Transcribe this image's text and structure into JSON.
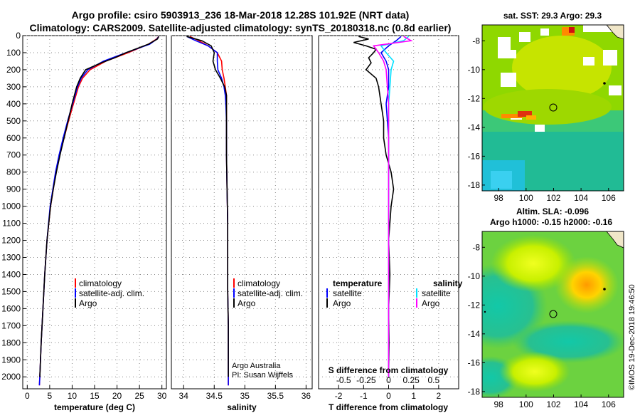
{
  "title_line1": "Argo profile: csiro 5903913_236 18-Mar-2018 12.28S 101.92E (NRT data)",
  "title_line2": "Climatology: CARS2009. Satellite-adjusted climatology: synTS_20180318.nc (0.8d earlier)",
  "credit": "©IMOS 19-Dec-2018 19:46:50",
  "sst_title": "sat. SST: 29.3 Argo: 29.3",
  "sla_title1": "Altim. SLA: -0.096",
  "sla_title2": "Argo h1000: -0.15 h2000: -0.16",
  "attribution1": "Argo Australia",
  "attribution2": "PI: Susan Wijffels",
  "chart_data": [
    {
      "type": "line",
      "xlabel": "temperature (deg C)",
      "xlim": [
        -1,
        31
      ],
      "ylim": [
        2070,
        0
      ],
      "xticks": [
        "0",
        "5",
        "10",
        "15",
        "20",
        "25",
        "30"
      ],
      "xtick_values": [
        0,
        5,
        10,
        15,
        20,
        25,
        30
      ],
      "yticks": [
        "0",
        "100",
        "200",
        "300",
        "400",
        "500",
        "600",
        "700",
        "800",
        "900",
        "1000",
        "1100",
        "1200",
        "1300",
        "1400",
        "1500",
        "1600",
        "1700",
        "1800",
        "1900",
        "2000"
      ],
      "ytick_values": [
        0,
        100,
        200,
        300,
        400,
        500,
        600,
        700,
        800,
        900,
        1000,
        1100,
        1200,
        1300,
        1400,
        1500,
        1600,
        1700,
        1800,
        1900,
        2000
      ],
      "legend": [
        "climatology",
        "satellite-adj. clim.",
        "Argo"
      ],
      "series": [
        {
          "name": "climatology",
          "color": "#ff0000",
          "depth": [
            5,
            20,
            50,
            100,
            150,
            200,
            250,
            300,
            400,
            500,
            600,
            700,
            800,
            900,
            1000,
            1200,
            1400,
            1600,
            1800,
            2000,
            2050
          ],
          "values": [
            29.3,
            28.8,
            27.0,
            22.5,
            17.5,
            14.0,
            12.3,
            11.4,
            10.3,
            9.2,
            8.2,
            7.2,
            6.4,
            5.8,
            5.2,
            4.4,
            3.9,
            3.5,
            3.1,
            2.8,
            2.7
          ]
        },
        {
          "name": "satellite-adj. clim.",
          "color": "#0000ff",
          "depth": [
            5,
            20,
            50,
            100,
            150,
            200,
            250,
            300,
            400,
            500,
            600,
            700,
            800,
            900,
            1000,
            1200,
            1400,
            1600,
            1800,
            2000,
            2050
          ],
          "values": [
            29.3,
            28.9,
            27.3,
            22.0,
            17.0,
            13.5,
            12.0,
            11.2,
            10.1,
            9.0,
            8.0,
            7.1,
            6.3,
            5.7,
            5.1,
            4.4,
            3.9,
            3.5,
            3.1,
            2.8,
            2.7
          ]
        },
        {
          "name": "Argo",
          "color": "#000000",
          "depth": [
            5,
            20,
            50,
            100,
            130,
            160,
            200,
            250,
            300,
            400,
            500,
            600,
            700,
            800,
            900,
            1000,
            1200,
            1400,
            1600,
            1800,
            2000
          ],
          "values": [
            29.3,
            29.0,
            27.0,
            22.0,
            19.5,
            16.5,
            13.0,
            11.8,
            11.0,
            10.0,
            9.1,
            8.2,
            7.3,
            6.5,
            5.8,
            5.2,
            4.4,
            3.9,
            3.5,
            3.1,
            2.8
          ]
        }
      ]
    },
    {
      "type": "line",
      "xlabel": "salinity",
      "xlim": [
        33.8,
        36.1
      ],
      "ylim": [
        2070,
        0
      ],
      "xticks": [
        "34",
        "34.5",
        "35",
        "35.5",
        "36"
      ],
      "xtick_values": [
        34,
        34.5,
        35,
        35.5,
        36
      ],
      "legend": [
        "climatology",
        "satellite-adj. clim.",
        "Argo"
      ],
      "series": [
        {
          "name": "climatology",
          "color": "#ff0000",
          "depth": [
            5,
            30,
            60,
            100,
            150,
            200,
            250,
            300,
            350,
            400,
            500,
            700,
            900,
            1100,
            1300,
            1500,
            1700,
            1900,
            2050
          ],
          "values": [
            34.1,
            34.25,
            34.4,
            34.55,
            34.62,
            34.63,
            34.66,
            34.68,
            34.7,
            34.7,
            34.7,
            34.7,
            34.71,
            34.72,
            34.72,
            34.72,
            34.73,
            34.73,
            34.73
          ]
        },
        {
          "name": "satellite-adj. clim.",
          "color": "#0000ff",
          "depth": [
            5,
            30,
            60,
            100,
            150,
            200,
            250,
            300,
            350,
            400,
            500,
            700,
            900,
            1100,
            1300,
            1500,
            1700,
            1900,
            2050
          ],
          "values": [
            34.05,
            34.2,
            34.4,
            34.55,
            34.55,
            34.56,
            34.62,
            34.66,
            34.68,
            34.69,
            34.7,
            34.7,
            34.71,
            34.72,
            34.72,
            34.72,
            34.73,
            34.73,
            34.73
          ]
        },
        {
          "name": "Argo",
          "color": "#000000",
          "depth": [
            5,
            30,
            60,
            100,
            150,
            200,
            250,
            300,
            350,
            400,
            500,
            700,
            900,
            1100,
            1300,
            1500,
            1700,
            1900,
            2000
          ],
          "values": [
            34.05,
            34.3,
            34.45,
            34.5,
            34.48,
            34.52,
            34.6,
            34.67,
            34.7,
            34.7,
            34.7,
            34.7,
            34.71,
            34.72,
            34.72,
            34.72,
            34.73,
            34.73,
            34.73
          ]
        }
      ]
    },
    {
      "type": "line",
      "xlabel": "T difference from climatology",
      "xlabel2": "S difference from climatology",
      "xlim": [
        -2.8,
        2.8
      ],
      "ylim": [
        2070,
        0
      ],
      "xticks": [
        "-2",
        "-1",
        "0",
        "1",
        "2"
      ],
      "xtick_values": [
        -2,
        -1,
        0,
        1,
        2
      ],
      "xticks2": [
        "-0.5",
        "-0.25",
        "0",
        "0.25",
        "0.5"
      ],
      "xtick2_values": [
        -1.8,
        -0.9,
        0,
        0.9,
        1.8
      ],
      "legend_left_title": "temperature",
      "legend_right_title": "salinity",
      "legend_left": [
        "satellite",
        "Argo"
      ],
      "legend_right": [
        "satellite",
        "Argo"
      ],
      "series": [
        {
          "name": "T satellite",
          "color": "#0000ff",
          "depth": [
            5,
            30,
            60,
            100,
            150,
            200,
            300,
            400,
            600,
            800,
            1000,
            1200,
            1400,
            1600,
            1800,
            2000
          ],
          "values": [
            0.5,
            0.3,
            0.0,
            -0.3,
            -0.1,
            0.0,
            0.0,
            -0.1,
            0.0,
            0.0,
            0.0,
            0.0,
            0.0,
            0.0,
            0.0,
            0.0
          ]
        },
        {
          "name": "T Argo",
          "color": "#000000",
          "depth": [
            5,
            20,
            40,
            60,
            80,
            100,
            130,
            160,
            200,
            250,
            300,
            400,
            500,
            600,
            700,
            800,
            900,
            1000,
            1200,
            1400,
            1600,
            1800,
            2000
          ],
          "values": [
            -1.2,
            -0.8,
            -1.4,
            -0.9,
            -0.5,
            -0.6,
            -0.8,
            -0.7,
            -0.9,
            -0.5,
            -0.4,
            -0.3,
            -0.2,
            -0.2,
            -0.1,
            0.1,
            0.2,
            0.1,
            0.0,
            0.05,
            0.0,
            0.02,
            0.0
          ]
        },
        {
          "name": "S satellite",
          "color": "#00e0ff",
          "depth": [
            5,
            30,
            60,
            100,
            150,
            200,
            300,
            400,
            600,
            800,
            1000,
            1200,
            1400,
            1600,
            1800,
            2000
          ],
          "values": [
            0.8,
            0.6,
            -0.3,
            -0.1,
            0.2,
            0.1,
            0.05,
            0.0,
            0.0,
            0.0,
            0.0,
            0.0,
            0.0,
            0.0,
            0.0,
            0.0
          ]
        },
        {
          "name": "S Argo",
          "color": "#ff00ff",
          "depth": [
            5,
            30,
            60,
            100,
            150,
            200,
            300,
            400,
            600,
            800,
            1000,
            1200,
            1400,
            1600,
            1800,
            2000
          ],
          "values": [
            0.6,
            0.9,
            -0.6,
            -0.4,
            -0.2,
            -0.1,
            -0.05,
            0.0,
            0.0,
            0.0,
            0.0,
            0.0,
            0.0,
            0.0,
            0.0,
            0.0
          ]
        }
      ]
    },
    {
      "type": "heatmap",
      "xticks": [
        "98",
        "100",
        "102",
        "104",
        "106"
      ],
      "xtick_values": [
        98,
        100,
        102,
        104,
        106
      ],
      "yticks": [
        "-8",
        "-10",
        "-12",
        "-14",
        "-16",
        "-18"
      ],
      "ytick_values": [
        -8,
        -10,
        -12,
        -14,
        -16,
        -18
      ],
      "xlim": [
        96.8,
        107.1
      ],
      "ylim": [
        -18.4,
        -6.9
      ],
      "argo_position": [
        101.92,
        -12.28
      ]
    },
    {
      "type": "heatmap",
      "xticks": [
        "98",
        "100",
        "102",
        "104",
        "106"
      ],
      "xtick_values": [
        98,
        100,
        102,
        104,
        106
      ],
      "yticks": [
        "-8",
        "-10",
        "-12",
        "-14",
        "-16",
        "-18"
      ],
      "ytick_values": [
        -8,
        -10,
        -12,
        -14,
        -16,
        -18
      ],
      "xlim": [
        96.8,
        107.1
      ],
      "ylim": [
        -18.4,
        -6.9
      ],
      "argo_position": [
        101.92,
        -12.28
      ]
    }
  ]
}
